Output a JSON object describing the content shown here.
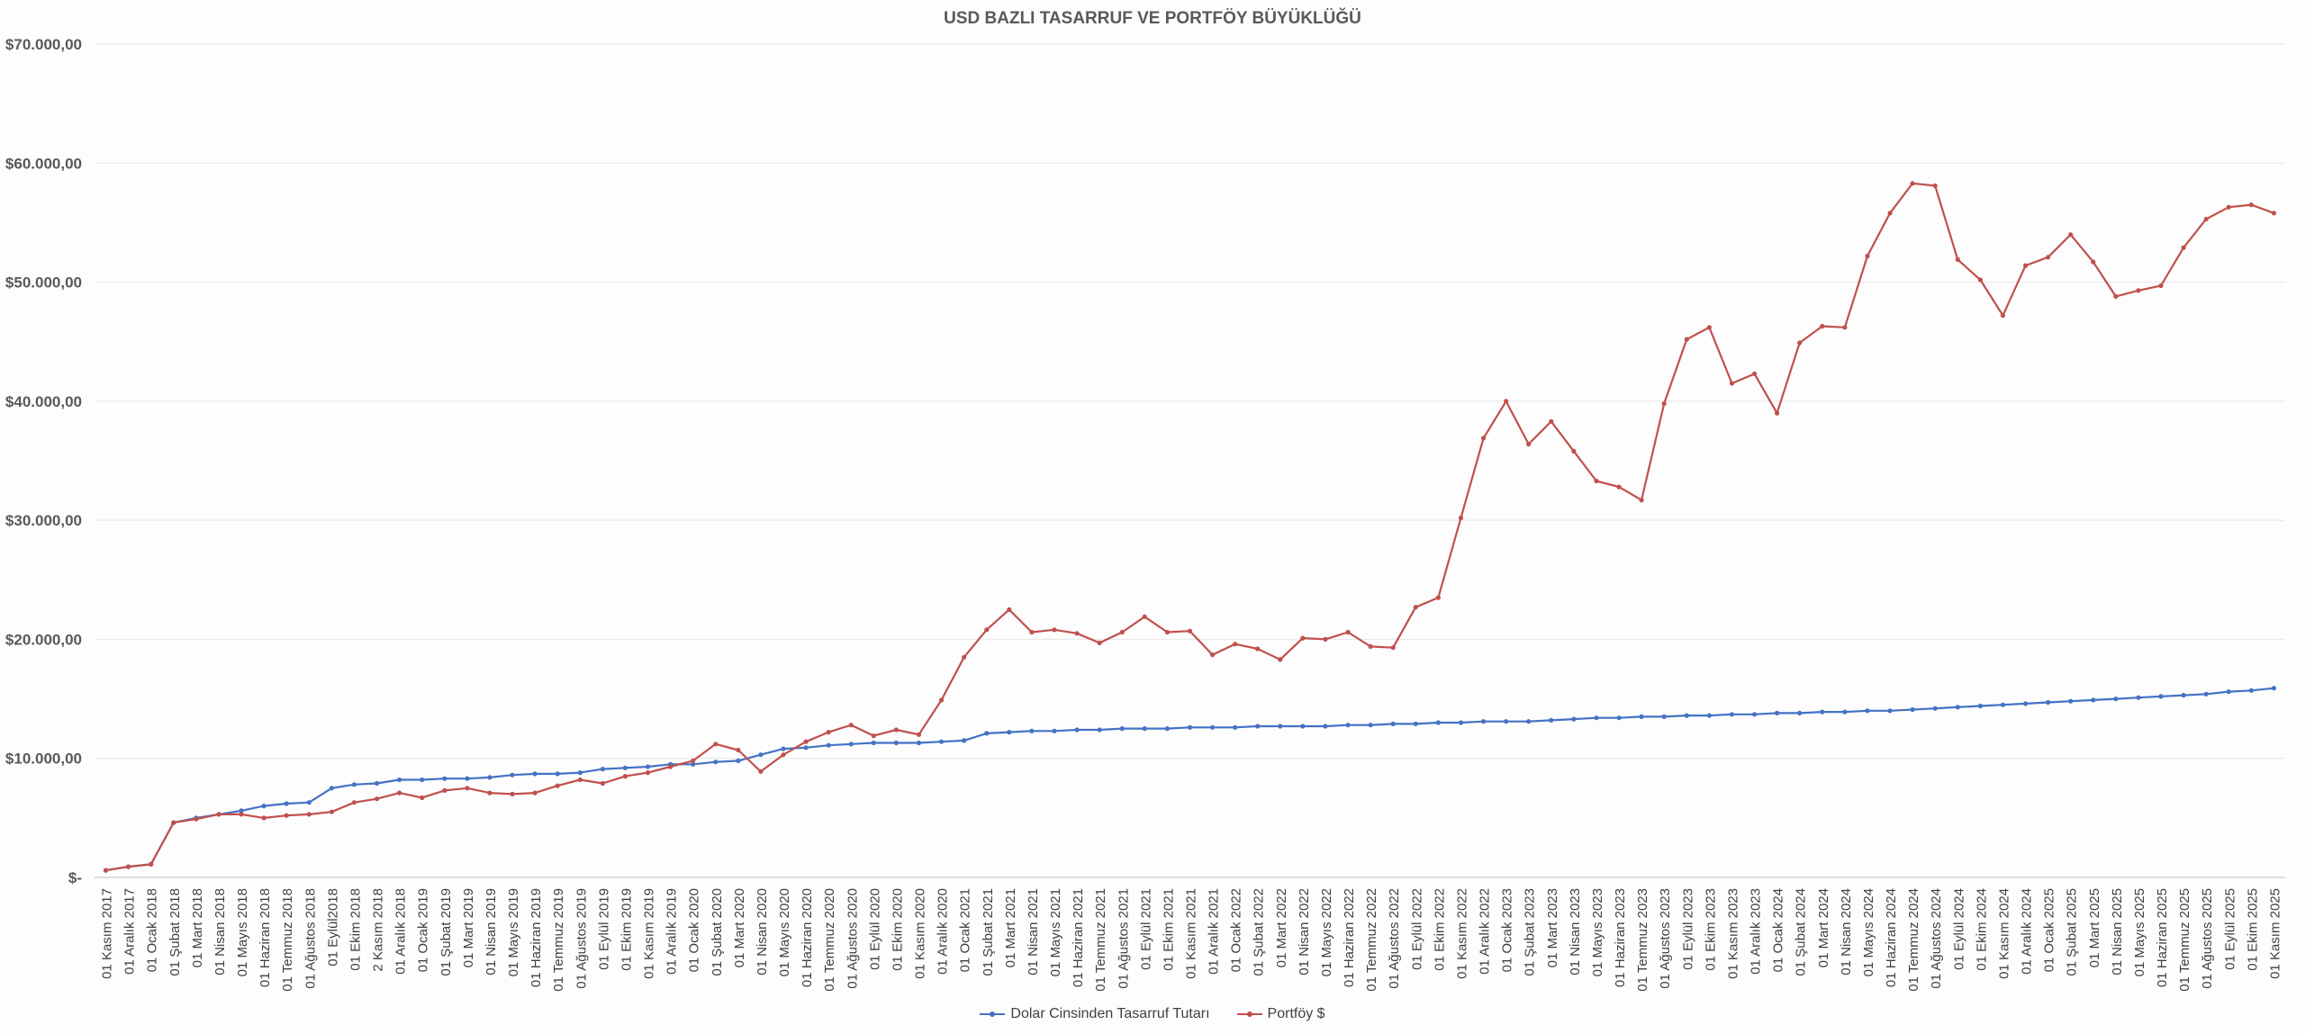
{
  "chart_data": {
    "type": "line",
    "title": "USD BAZLI TASARRUF VE PORTFÖY BÜYÜKLÜĞÜ",
    "xlabel": "",
    "ylabel": "",
    "ylim": [
      0,
      70000
    ],
    "y_ticks": [
      "$-",
      "$10.000,00",
      "$20.000,00",
      "$30.000,00",
      "$40.000,00",
      "$50.000,00",
      "$60.000,00",
      "$70.000,00"
    ],
    "grid": true,
    "legend_position": "bottom",
    "categories": [
      "01 Kasım 2017",
      "01 Aralık 2017",
      "01 Ocak 2018",
      "01 Şubat 2018",
      "01 Mart 2018",
      "01 Nisan 2018",
      "01 Mayıs 2018",
      "01 Haziran 2018",
      "01 Temmuz 2018",
      "01 Ağustos 2018",
      "01 Eylül2018",
      "01 Ekim 2018",
      "2 Kasım 2018",
      "01 Aralık 2018",
      "01 Ocak 2019",
      "01 Şubat 2019",
      "01 Mart 2019",
      "01 Nisan 2019",
      "01 Mayıs 2019",
      "01 Haziran 2019",
      "01 Temmuz 2019",
      "01 Ağustos 2019",
      "01 Eylül 2019",
      "01 Ekim 2019",
      "01 Kasım 2019",
      "01 Aralık 2019",
      "01 Ocak 2020",
      "01 Şubat 2020",
      "01 Mart 2020",
      "01 Nisan 2020",
      "01 Mayıs 2020",
      "01 Haziran 2020",
      "01 Temmuz 2020",
      "01 Ağustos 2020",
      "01 Eylül 2020",
      "01 Ekim 2020",
      "01 Kasım 2020",
      "01 Aralık 2020",
      "01 Ocak 2021",
      "01 Şubat 2021",
      "01 Mart 2021",
      "01 Nisan 2021",
      "01 Mayıs 2021",
      "01 Haziran 2021",
      "01 Temmuz 2021",
      "01 Ağustos 2021",
      "01 Eylül 2021",
      "01 Ekim 2021",
      "01 Kasım 2021",
      "01 Aralık 2021",
      "01 Ocak 2022",
      "01 Şubat 2022",
      "01 Mart 2022",
      "01 Nisan 2022",
      "01 Mayıs 2022",
      "01 Haziran 2022",
      "01 Temmuz 2022",
      "01 Ağustos 2022",
      "01 Eylül 2022",
      "01 Ekim 2022",
      "01 Kasım 2022",
      "01 Aralık 2022",
      "01 Ocak 2023",
      "01 Şubat 2023",
      "01 Mart 2023",
      "01 Nisan 2023",
      "01 Mayıs 2023",
      "01 Haziran 2023",
      "01 Temmuz 2023",
      "01 Ağustos 2023",
      "01 Eylül 2023",
      "01 Ekim 2023",
      "01 Kasım 2023",
      "01 Aralık 2023",
      "01 Ocak 2024",
      "01 Şubat 2024",
      "01 Mart 2024",
      "01 Nisan 2024",
      "01 Mayıs 2024",
      "01 Haziran 2024",
      "01 Temmuz 2024",
      "01 Ağustos 2024",
      "01 Eylül 2024",
      "01 Ekim 2024",
      "01 Kasım 2024",
      "01 Aralık 2024",
      "01 Ocak 2025",
      "01 Şubat 2025",
      "01 Mart 2025",
      "01 Nisan 2025",
      "01 Mayıs 2025",
      "01 Haziran 2025",
      "01 Temmuz 2025",
      "01 Ağustos 2025",
      "01 Eylül 2025",
      "01 Ekim 2025",
      "01 Kasım 2025"
    ],
    "series": [
      {
        "name": "Dolar Cinsinden Tasarruf Tutarı",
        "color": "#4472C4",
        "values": [
          600,
          900,
          1100,
          4600,
          5000,
          5300,
          5600,
          6000,
          6200,
          6300,
          7500,
          7800,
          7900,
          8200,
          8200,
          8300,
          8300,
          8400,
          8600,
          8700,
          8700,
          8800,
          9100,
          9200,
          9300,
          9500,
          9500,
          9700,
          9800,
          10300,
          10800,
          10900,
          11100,
          11200,
          11300,
          11300,
          11300,
          11400,
          11500,
          12100,
          12200,
          12300,
          12300,
          12400,
          12400,
          12500,
          12500,
          12500,
          12600,
          12600,
          12600,
          12700,
          12700,
          12700,
          12700,
          12800,
          12800,
          12900,
          12900,
          13000,
          13000,
          13100,
          13100,
          13100,
          13200,
          13300,
          13400,
          13400,
          13500,
          13500,
          13600,
          13600,
          13700,
          13700,
          13800,
          13800,
          13900,
          13900,
          14000,
          14000,
          14100,
          14200,
          14300,
          14400,
          14500,
          14600,
          14700,
          14800,
          14900,
          15000,
          15100,
          15200,
          15300,
          15400,
          15600,
          15700,
          15900
        ]
      },
      {
        "name": "Portföy $",
        "color": "#C0504D",
        "values": [
          600,
          900,
          1100,
          4600,
          4900,
          5300,
          5300,
          5000,
          5200,
          5300,
          5500,
          6300,
          6600,
          7100,
          6700,
          7300,
          7500,
          7100,
          7000,
          7100,
          7700,
          8200,
          7900,
          8500,
          8800,
          9300,
          9800,
          11200,
          10700,
          8900,
          10300,
          11400,
          12200,
          12800,
          11900,
          12400,
          12000,
          14900,
          18500,
          20800,
          22500,
          20600,
          20800,
          20500,
          19700,
          20600,
          21900,
          20600,
          20700,
          18700,
          19600,
          19200,
          18300,
          20100,
          20000,
          20600,
          19400,
          19300,
          22700,
          23500,
          30200,
          36900,
          40000,
          36400,
          38300,
          35800,
          33300,
          32800,
          31700,
          39800,
          45200,
          46200,
          41500,
          42300,
          39000,
          44900,
          46300,
          46200,
          52200,
          55800,
          58300,
          58100,
          51900,
          50200,
          47200,
          51400,
          52100,
          54000,
          51700,
          48800,
          49300,
          49700,
          52900,
          55300,
          56300,
          56500,
          55800
        ]
      }
    ]
  }
}
